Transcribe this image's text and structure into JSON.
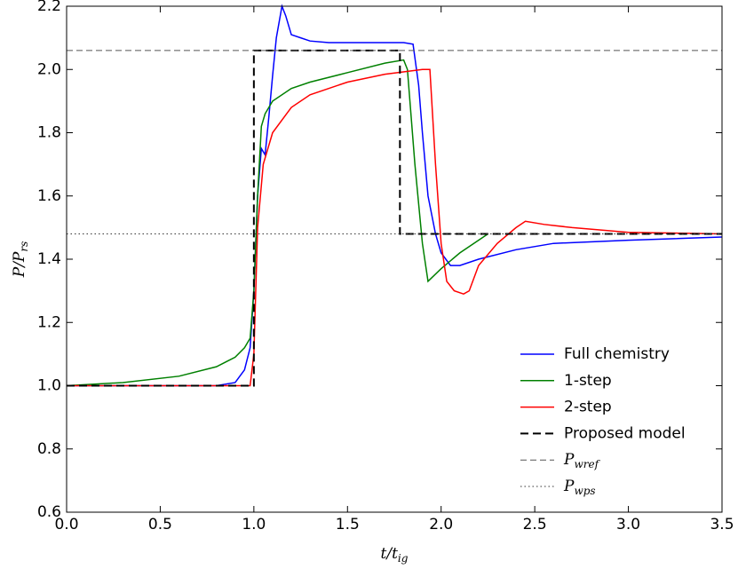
{
  "chart_data": {
    "type": "line",
    "xlabel": "t/t_ig",
    "ylabel": "P/P_rs",
    "xlim": [
      0,
      3.5
    ],
    "ylim": [
      0.6,
      2.2
    ],
    "xticks": [
      {
        "value": 0,
        "label": "0.0"
      },
      0.5,
      {
        "value": 1,
        "label": "1.0"
      },
      1.5,
      {
        "value": 2,
        "label": "2.0"
      },
      2.5,
      {
        "value": 3,
        "label": "3.0"
      },
      3.5
    ],
    "yticks": [
      0.6,
      0.8,
      {
        "value": 1,
        "label": "1.0"
      },
      1.2,
      1.4,
      1.6,
      1.8,
      {
        "value": 2,
        "label": "2.0"
      },
      2.2
    ],
    "legend": "lower right",
    "series": [
      {
        "name": "Full chemistry",
        "color": "#0000ff",
        "dash": "solid",
        "x": [
          0,
          0.5,
          0.8,
          0.9,
          0.95,
          0.98,
          1.0,
          1.02,
          1.04,
          1.06,
          1.08,
          1.1,
          1.12,
          1.15,
          1.17,
          1.2,
          1.25,
          1.3,
          1.4,
          1.5,
          1.6,
          1.7,
          1.8,
          1.85,
          1.88,
          1.9,
          1.93,
          1.97,
          2.0,
          2.05,
          2.1,
          2.2,
          2.4,
          2.6,
          3.0,
          3.5
        ],
        "values": [
          1.0,
          1.0,
          1.0,
          1.01,
          1.05,
          1.12,
          1.3,
          1.6,
          1.75,
          1.73,
          1.85,
          1.98,
          2.1,
          2.2,
          2.17,
          2.11,
          2.1,
          2.09,
          2.085,
          2.085,
          2.085,
          2.085,
          2.085,
          2.08,
          1.95,
          1.8,
          1.6,
          1.48,
          1.42,
          1.38,
          1.38,
          1.4,
          1.43,
          1.45,
          1.46,
          1.47
        ]
      },
      {
        "name": "1-step",
        "color": "#008000",
        "dash": "solid",
        "x": [
          0,
          0.3,
          0.6,
          0.8,
          0.9,
          0.95,
          0.98,
          1.0,
          1.02,
          1.04,
          1.06,
          1.1,
          1.2,
          1.3,
          1.5,
          1.7,
          1.8,
          1.82,
          1.86,
          1.9,
          1.93,
          2.0,
          2.1,
          2.2,
          2.25
        ],
        "values": [
          1.0,
          1.01,
          1.03,
          1.06,
          1.09,
          1.12,
          1.15,
          1.3,
          1.6,
          1.82,
          1.86,
          1.9,
          1.94,
          1.96,
          1.99,
          2.02,
          2.03,
          2.0,
          1.7,
          1.45,
          1.33,
          1.37,
          1.42,
          1.46,
          1.48
        ]
      },
      {
        "name": "2-step",
        "color": "#ff0000",
        "dash": "solid",
        "x": [
          0,
          0.9,
          0.98,
          1.0,
          1.02,
          1.05,
          1.1,
          1.2,
          1.3,
          1.5,
          1.7,
          1.9,
          1.94,
          1.97,
          2.0,
          2.03,
          2.07,
          2.12,
          2.15,
          2.2,
          2.3,
          2.4,
          2.45,
          2.55,
          2.7,
          3.0,
          3.5
        ],
        "values": [
          1.0,
          1.0,
          1.0,
          1.1,
          1.5,
          1.7,
          1.8,
          1.88,
          1.92,
          1.96,
          1.985,
          2.0,
          2.0,
          1.7,
          1.45,
          1.33,
          1.3,
          1.29,
          1.3,
          1.38,
          1.45,
          1.5,
          1.52,
          1.51,
          1.5,
          1.485,
          1.48
        ]
      },
      {
        "name": "Proposed model",
        "color": "#000000",
        "dash": "dashed",
        "x": [
          0,
          1,
          1,
          1.78,
          1.78,
          3.5
        ],
        "values": [
          1.0,
          1.0,
          2.06,
          2.06,
          1.48,
          1.48
        ]
      },
      {
        "name": "P_wref",
        "color": "#555555",
        "dash": "dashed-thin",
        "x": [
          0,
          3.5
        ],
        "values": [
          2.06,
          2.06
        ]
      },
      {
        "name": "P_wps",
        "color": "#333333",
        "dash": "dotted",
        "x": [
          0,
          3.5
        ],
        "values": [
          1.48,
          1.48
        ]
      }
    ]
  }
}
